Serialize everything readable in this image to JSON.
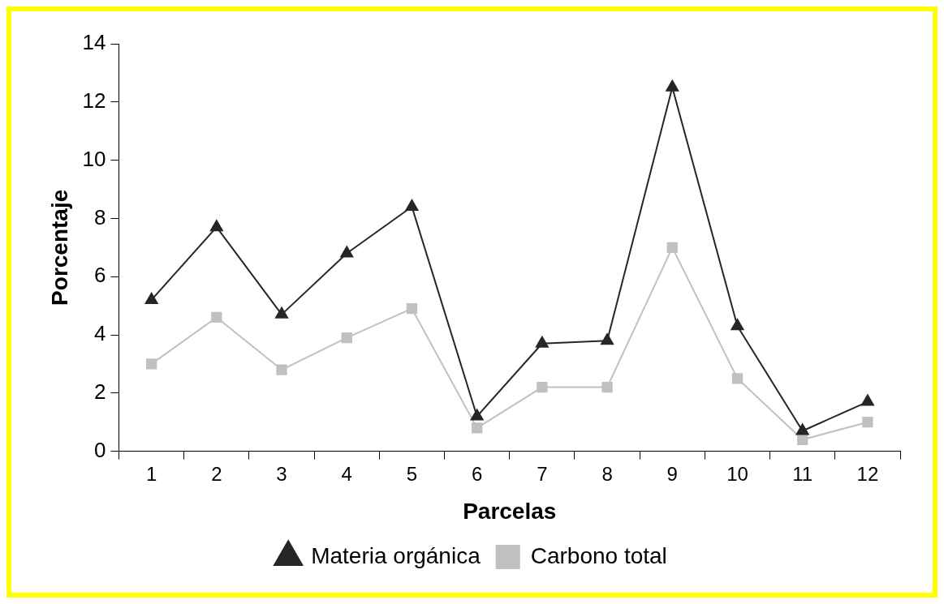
{
  "chart_data": {
    "type": "line",
    "xlabel": "Parcelas",
    "ylabel": "Porcentaje",
    "categories": [
      "1",
      "2",
      "3",
      "4",
      "5",
      "6",
      "7",
      "8",
      "9",
      "10",
      "11",
      "12"
    ],
    "series": [
      {
        "name": "Materia orgánica",
        "color": "#262626",
        "marker": "triangle",
        "values": [
          5.2,
          7.7,
          4.7,
          6.8,
          8.4,
          1.2,
          3.7,
          3.8,
          12.5,
          4.3,
          0.7,
          1.7
        ]
      },
      {
        "name": "Carbono total",
        "color": "#c0c0c0",
        "marker": "square",
        "values": [
          3.0,
          4.6,
          2.8,
          3.9,
          4.9,
          0.8,
          2.2,
          2.2,
          7.0,
          2.5,
          0.4,
          1.0
        ]
      }
    ],
    "ylim": [
      0,
      14
    ],
    "yticks": [
      0,
      2,
      4,
      6,
      8,
      10,
      12,
      14
    ],
    "grid": false,
    "legend": "bottom",
    "line_style": "solid"
  }
}
